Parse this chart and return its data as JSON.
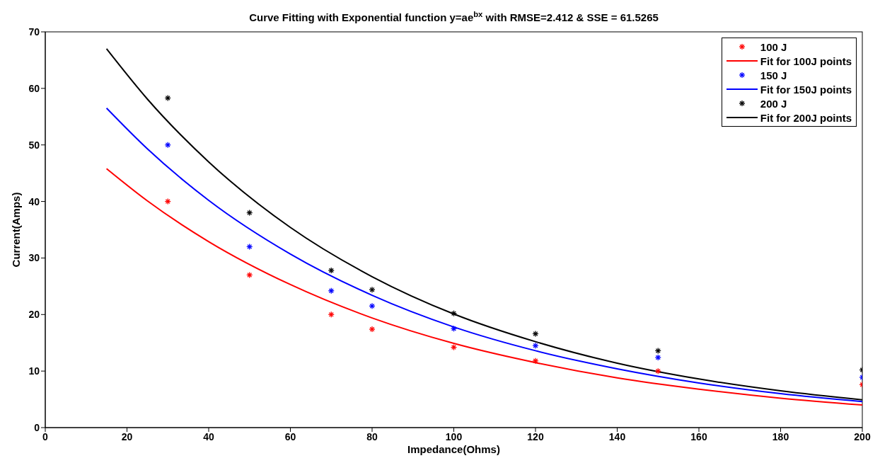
{
  "chart_data": {
    "type": "scatter",
    "title": "Curve Fitting with Exponential function y=ae$^{bx}$  with  RMSE=2.412 & SSE =  61.5265",
    "xlabel": "Impedance(Ohms)",
    "ylabel": "Current(Amps)",
    "xlim": [
      0,
      200
    ],
    "xticks": [
      0,
      20,
      40,
      60,
      80,
      100,
      120,
      140,
      160,
      180,
      200
    ],
    "ylim": [
      0,
      70
    ],
    "yticks": [
      0,
      10,
      20,
      30,
      40,
      50,
      60,
      70
    ],
    "grid": false,
    "legend": "top right",
    "series": [
      {
        "name": "100 J",
        "marker": "cross",
        "color": "#ff0000",
        "x": [
          30,
          50,
          70,
          80,
          100,
          120,
          150,
          200
        ],
        "values": [
          40,
          27,
          20,
          17.4,
          14.2,
          11.8,
          10,
          7.6
        ]
      },
      {
        "name": "Fit for 100J points",
        "type": "line",
        "marker": "none",
        "color": "#ff0000",
        "x": [
          15,
          25,
          40,
          60,
          80,
          100,
          120,
          140,
          160,
          180,
          200
        ],
        "values": [
          45.8,
          40.1,
          32.9,
          25.3,
          19.4,
          14.9,
          11.5,
          8.8,
          6.8,
          5.2,
          4.0
        ]
      },
      {
        "name": "150 J",
        "marker": "cross",
        "color": "#0000ff",
        "x": [
          30,
          50,
          70,
          80,
          100,
          120,
          150,
          200
        ],
        "values": [
          50,
          32,
          24.2,
          21.5,
          17.5,
          14.5,
          12.4,
          8.9
        ]
      },
      {
        "name": "Fit for 150J points",
        "type": "line",
        "marker": "none",
        "color": "#0000ff",
        "x": [
          15,
          25,
          40,
          60,
          80,
          100,
          120,
          140,
          160,
          180,
          200
        ],
        "values": [
          56.5,
          49.3,
          40.2,
          30.7,
          23.4,
          17.8,
          13.6,
          10.4,
          7.9,
          6.0,
          4.6
        ]
      },
      {
        "name": "200 J",
        "marker": "cross",
        "color": "#000000",
        "x": [
          30,
          50,
          70,
          80,
          100,
          120,
          150,
          200
        ],
        "values": [
          58.3,
          38,
          27.8,
          24.4,
          20.2,
          16.6,
          13.6,
          10.2
        ]
      },
      {
        "name": "Fit for 200J points",
        "type": "line",
        "marker": "none",
        "color": "#000000",
        "x": [
          15,
          25,
          40,
          60,
          80,
          100,
          120,
          140,
          160,
          180,
          200
        ],
        "values": [
          67,
          58.1,
          47.0,
          35.4,
          26.7,
          20.1,
          15.2,
          11.4,
          8.6,
          6.5,
          4.9
        ]
      }
    ]
  }
}
